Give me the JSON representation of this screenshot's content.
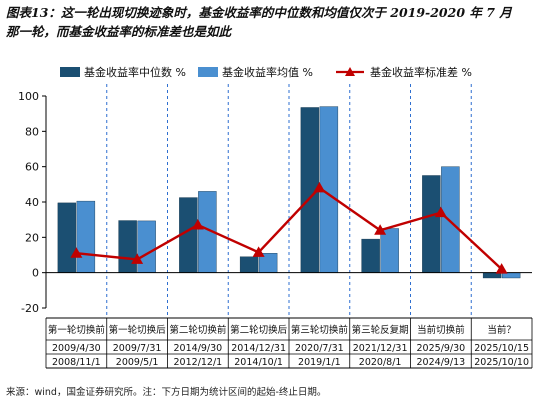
{
  "figure": {
    "title_line1": "图表13：这一轮出现切换迹象时，基金收益率的中位数和均值仅次于 2019-2020 年 7 月",
    "title_line2": "那一轮，而基金收益率的标准差也是如此",
    "source": "来源：wind，国金证券研究所。注：下方日期为统计区间的起始-终止日期。"
  },
  "chart_data": {
    "type": "bar",
    "categories": [
      "第一轮切换前",
      "第一轮切换后",
      "第二轮切换前",
      "第二轮切换后",
      "第三轮切换前",
      "第三轮反复期",
      "当前切换前",
      "当前？"
    ],
    "period_start": [
      "2009/4/30",
      "2009/7/31",
      "2014/9/30",
      "2014/12/31",
      "2020/7/31",
      "2021/12/31",
      "2025/9/30",
      "2025/10/15"
    ],
    "period_end": [
      "2008/11/1",
      "2009/5/1",
      "2012/12/1",
      "2014/10/1",
      "2019/1/1",
      "2020/8/1",
      "2024/9/13",
      "2025/10/10"
    ],
    "series": [
      {
        "name": "基金收益率中位数 %",
        "type": "bar",
        "color": "#1b4f72",
        "values": [
          39.5,
          29.5,
          42.5,
          9,
          93.5,
          19,
          55,
          -3
        ]
      },
      {
        "name": "基金收益率均值 %",
        "type": "bar",
        "color": "#4a8fd0",
        "values": [
          40.5,
          29.3,
          46,
          11,
          94,
          25,
          60,
          -3
        ]
      },
      {
        "name": "基金收益率标准差 %",
        "type": "line",
        "color": "#c00000",
        "values": [
          11,
          7.5,
          27,
          11.5,
          48,
          24,
          34,
          2
        ]
      }
    ],
    "ylim": [
      -20,
      100
    ],
    "yticks": [
      -20,
      0,
      20,
      40,
      60,
      80,
      100
    ],
    "grid": false,
    "legend_position": "top"
  }
}
